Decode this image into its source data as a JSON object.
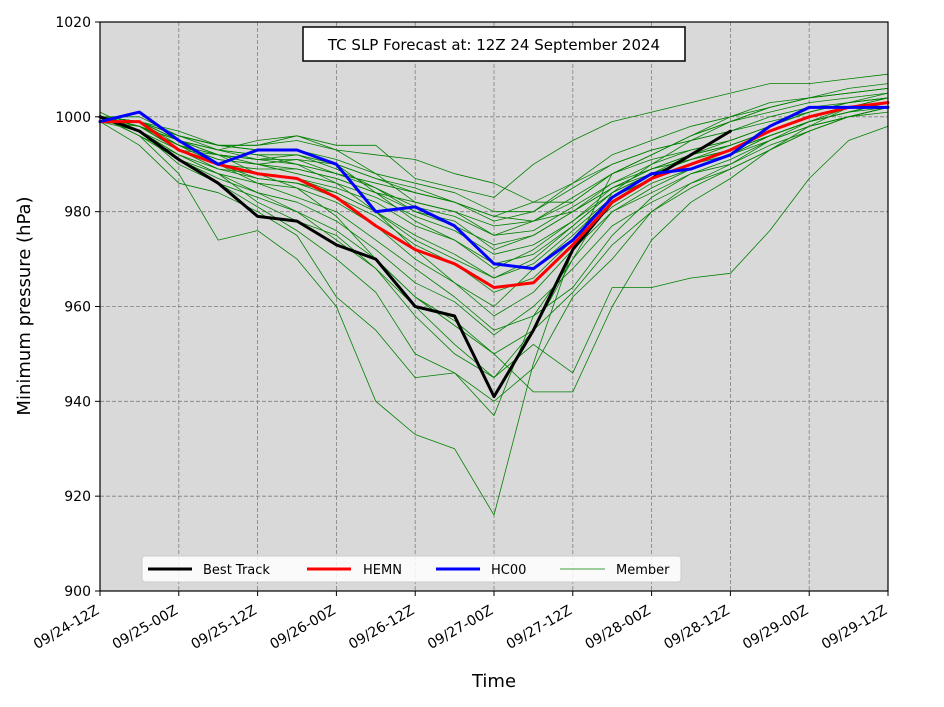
{
  "chart_data": {
    "type": "line",
    "title": "TC SLP Forecast at: 12Z 24 September 2024",
    "xlabel": "Time",
    "ylabel": "Minimum pressure (hPa)",
    "x_tick_labels": [
      "09/24-12Z",
      "09/25-00Z",
      "09/25-12Z",
      "09/26-00Z",
      "09/26-12Z",
      "09/27-00Z",
      "09/27-12Z",
      "09/28-00Z",
      "09/28-12Z",
      "09/29-00Z",
      "09/29-12Z"
    ],
    "y_ticks": [
      900,
      920,
      940,
      960,
      980,
      1000,
      1020
    ],
    "xlim": [
      0,
      120
    ],
    "ylim": [
      900,
      1020
    ],
    "x_unit_note": "hours after 09/24-12Z",
    "grid": true,
    "legend_position": "lower center",
    "background_color": "#d9d9d9",
    "series": [
      {
        "name": "Best Track",
        "color": "#000000",
        "width": 3,
        "x": [
          0,
          6,
          12,
          18,
          24,
          30,
          36,
          42,
          48,
          54,
          60,
          66,
          72,
          78,
          84,
          90,
          96
        ],
        "values": [
          1000,
          997,
          991,
          986,
          979,
          978,
          973,
          970,
          960,
          958,
          941,
          955,
          972,
          982,
          987,
          992,
          997
        ]
      },
      {
        "name": "HEMN",
        "color": "#ff0000",
        "width": 3,
        "x": [
          0,
          6,
          12,
          18,
          24,
          30,
          36,
          42,
          48,
          54,
          60,
          66,
          72,
          78,
          84,
          90,
          96,
          102,
          108,
          114,
          120
        ],
        "values": [
          999,
          999,
          993,
          990,
          988,
          987,
          983,
          977,
          972,
          969,
          964,
          965,
          973,
          982,
          987,
          990,
          993,
          997,
          1000,
          1002,
          1003
        ]
      },
      {
        "name": "HC00",
        "color": "#0000ff",
        "width": 3,
        "x": [
          0,
          6,
          12,
          18,
          24,
          30,
          36,
          42,
          48,
          54,
          60,
          66,
          72,
          78,
          84,
          90,
          96,
          102,
          108,
          114,
          120
        ],
        "values": [
          999,
          1001,
          995,
          990,
          993,
          993,
          990,
          980,
          981,
          977,
          969,
          968,
          974,
          983,
          988,
          989,
          992,
          998,
          1002,
          1002,
          1002
        ]
      }
    ],
    "members": {
      "name": "Member",
      "color": "#008000",
      "width": 0.8,
      "x": [
        0,
        6,
        12,
        18,
        24,
        30,
        36,
        42,
        48,
        54,
        60,
        66,
        72,
        78,
        84,
        90,
        96,
        102,
        108,
        114,
        120
      ],
      "lines": [
        [
          1000,
          996,
          988,
          974,
          976,
          970,
          960,
          940,
          933,
          930,
          916,
          948,
          972,
          988,
          992,
          996,
          1000,
          1003,
          1004,
          1005,
          1006
        ],
        [
          999,
          994,
          986,
          984,
          980,
          975,
          962,
          955,
          945,
          946,
          937,
          958,
          970,
          984,
          990,
          995,
          999,
          1001,
          1003,
          1004,
          1005
        ],
        [
          1001,
          997,
          990,
          986,
          981,
          976,
          970,
          963,
          950,
          946,
          940,
          947,
          962,
          970,
          980,
          986,
          990,
          995,
          999,
          1002,
          1004
        ],
        [
          1000,
          998,
          993,
          992,
          988,
          985,
          979,
          970,
          962,
          957,
          950,
          942,
          942,
          960,
          974,
          982,
          987,
          993,
          998,
          1002,
          1003
        ],
        [
          1000,
          996,
          992,
          988,
          982,
          978,
          975,
          968,
          960,
          952,
          945,
          952,
          946,
          964,
          964,
          966,
          967,
          976,
          987,
          995,
          998
        ],
        [
          1000,
          998,
          994,
          990,
          986,
          983,
          980,
          974,
          968,
          962,
          955,
          958,
          964,
          975,
          983,
          988,
          991,
          995,
          998,
          1000,
          1002
        ],
        [
          999,
          997,
          991,
          988,
          984,
          980,
          974,
          968,
          958,
          950,
          945,
          955,
          970,
          980,
          984,
          988,
          990,
          994,
          997,
          1000,
          1001
        ],
        [
          1000,
          999,
          995,
          993,
          992,
          990,
          986,
          980,
          972,
          965,
          960,
          968,
          975,
          983,
          987,
          990,
          992,
          996,
          999,
          1001,
          1002
        ],
        [
          1000,
          1000,
          996,
          994,
          993,
          993,
          990,
          984,
          978,
          974,
          968,
          972,
          978,
          985,
          989,
          992,
          994,
          997,
          1000,
          1002,
          1004
        ],
        [
          1000,
          999,
          996,
          994,
          994,
          995,
          993,
          988,
          982,
          980,
          975,
          978,
          983,
          988,
          991,
          993,
          995,
          998,
          1001,
          1003,
          1004
        ],
        [
          1000,
          999,
          995,
          993,
          991,
          992,
          989,
          985,
          980,
          978,
          972,
          975,
          980,
          986,
          989,
          991,
          993,
          996,
          999,
          1001,
          1003
        ],
        [
          1000,
          998,
          994,
          991,
          990,
          991,
          990,
          987,
          984,
          982,
          978,
          980,
          985,
          990,
          993,
          995,
          997,
          1000,
          1002,
          1003,
          1005
        ],
        [
          1000,
          999,
          996,
          994,
          994,
          996,
          993,
          992,
          991,
          988,
          986,
          982,
          982,
          988,
          992,
          996,
          999,
          1002,
          1004,
          1006,
          1007
        ],
        [
          1000,
          999,
          995,
          993,
          995,
          996,
          994,
          994,
          987,
          985,
          983,
          990,
          995,
          999,
          1001,
          1003,
          1005,
          1007,
          1007,
          1008,
          1009
        ],
        [
          1000,
          998,
          994,
          992,
          990,
          989,
          987,
          984,
          982,
          980,
          977,
          978,
          982,
          988,
          992,
          996,
          999,
          1002,
          1004,
          1005,
          1006
        ],
        [
          1000,
          999,
          997,
          994,
          993,
          993,
          991,
          988,
          986,
          984,
          980,
          980,
          986,
          992,
          995,
          998,
          1000,
          1002,
          1004,
          1005,
          1006
        ],
        [
          1000,
          997,
          993,
          990,
          988,
          987,
          984,
          980,
          975,
          971,
          966,
          970,
          977,
          984,
          988,
          991,
          994,
          997,
          1000,
          1002,
          1003
        ],
        [
          1000,
          998,
          995,
          992,
          991,
          990,
          988,
          986,
          984,
          982,
          979,
          978,
          980,
          985,
          988,
          991,
          993,
          996,
          999,
          1001,
          1003
        ],
        [
          1000,
          997,
          992,
          988,
          986,
          985,
          982,
          977,
          970,
          965,
          958,
          963,
          972,
          980,
          985,
          989,
          992,
          996,
          999,
          1001,
          1003
        ],
        [
          1000,
          996,
          991,
          987,
          984,
          982,
          978,
          972,
          965,
          961,
          954,
          960,
          968,
          977,
          982,
          986,
          989,
          993,
          997,
          1000,
          1002
        ],
        [
          1000,
          998,
          995,
          992,
          991,
          991,
          988,
          985,
          981,
          979,
          975,
          976,
          981,
          986,
          990,
          993,
          995,
          998,
          1001,
          1003,
          1004
        ],
        [
          999,
          998,
          994,
          990,
          987,
          986,
          984,
          980,
          974,
          970,
          966,
          969,
          976,
          983,
          987,
          990,
          993,
          996,
          999,
          1001,
          1003
        ],
        [
          1000,
          999,
          996,
          993,
          992,
          992,
          990,
          987,
          985,
          982,
          979,
          982,
          986,
          990,
          993,
          995,
          997,
          999,
          1001,
          1003,
          1004
        ],
        [
          1000,
          997,
          991,
          986,
          983,
          980,
          976,
          970,
          962,
          956,
          950,
          955,
          963,
          973,
          980,
          985,
          989,
          993,
          997,
          1000,
          1002
        ],
        [
          1000,
          998,
          993,
          989,
          988,
          987,
          985,
          982,
          977,
          974,
          969,
          971,
          977,
          984,
          988,
          992,
          994,
          997,
          1000,
          1002,
          1003
        ],
        [
          1000,
          999,
          994,
          991,
          990,
          988,
          986,
          983,
          979,
          976,
          971,
          973,
          978,
          984,
          988,
          991,
          993,
          996,
          999,
          1001,
          1003
        ],
        [
          1000,
          998,
          993,
          990,
          989,
          989,
          987,
          984,
          980,
          977,
          973,
          975,
          980,
          985,
          989,
          992,
          995,
          998,
          1001,
          1003,
          1004
        ],
        [
          1000,
          997,
          992,
          989,
          987,
          986,
          983,
          979,
          973,
          969,
          963,
          966,
          974,
          981,
          986,
          989,
          992,
          995,
          998,
          1000,
          1002
        ]
      ]
    }
  }
}
